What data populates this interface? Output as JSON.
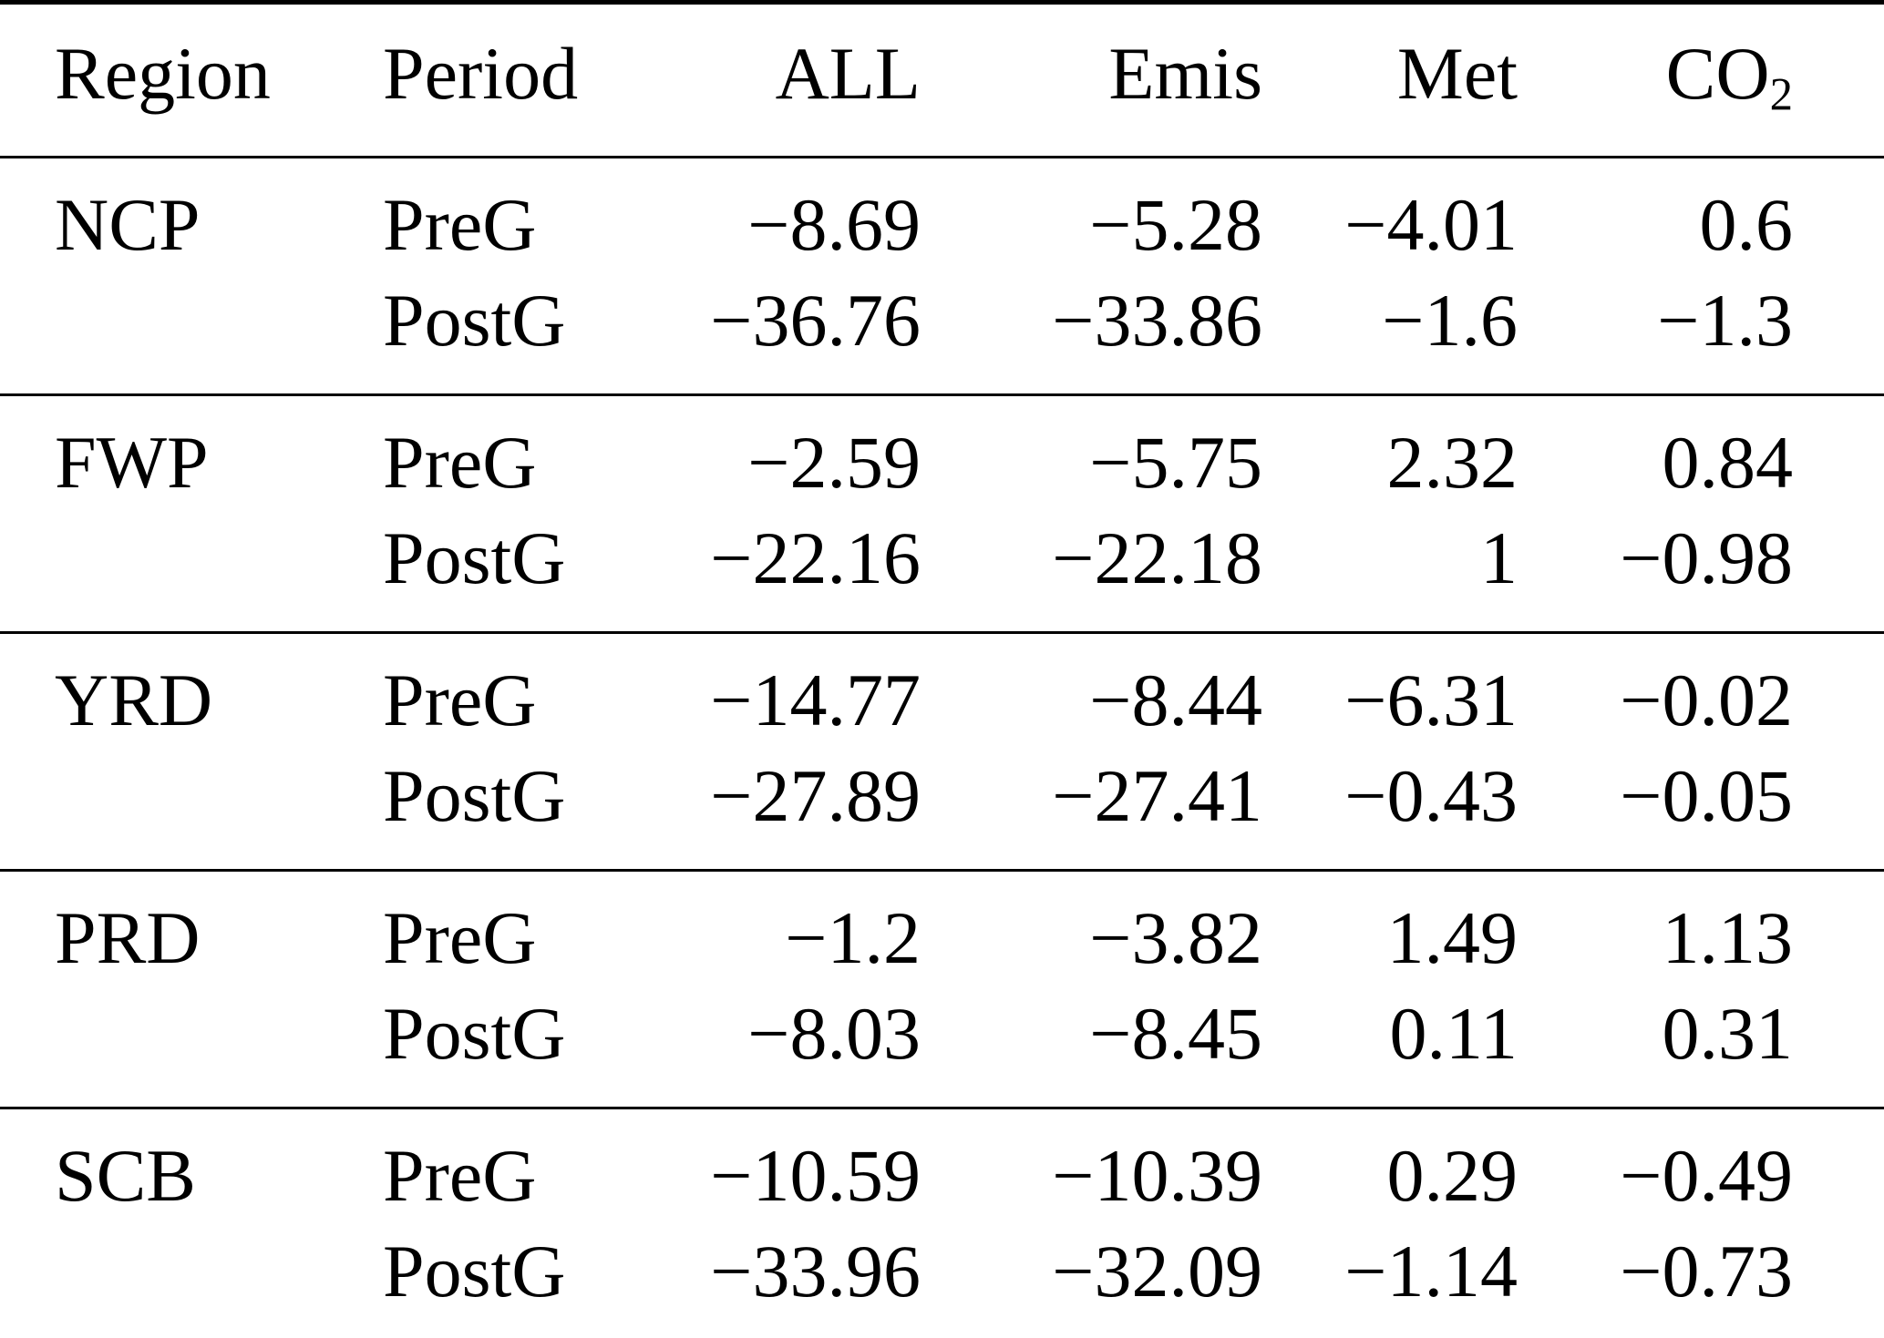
{
  "chart_data": {
    "type": "table",
    "headers": [
      {
        "label": "Region"
      },
      {
        "label": "Period"
      },
      {
        "label": "ALL"
      },
      {
        "label": "Emis"
      },
      {
        "label": "Met"
      },
      {
        "label": "CO",
        "sub": "2"
      }
    ],
    "groups": [
      {
        "region": "NCP",
        "rows": [
          {
            "period": "PreG",
            "values": [
              "−8.69",
              "−5.28",
              "−4.01",
              "0.6"
            ]
          },
          {
            "period": "PostG",
            "values": [
              "−36.76",
              "−33.86",
              "−1.6",
              "−1.3"
            ]
          }
        ]
      },
      {
        "region": "FWP",
        "rows": [
          {
            "period": "PreG",
            "values": [
              "−2.59",
              "−5.75",
              "2.32",
              "0.84"
            ]
          },
          {
            "period": "PostG",
            "values": [
              "−22.16",
              "−22.18",
              "1",
              "−0.98"
            ]
          }
        ]
      },
      {
        "region": "YRD",
        "rows": [
          {
            "period": "PreG",
            "values": [
              "−14.77",
              "−8.44",
              "−6.31",
              "−0.02"
            ]
          },
          {
            "period": "PostG",
            "values": [
              "−27.89",
              "−27.41",
              "−0.43",
              "−0.05"
            ]
          }
        ]
      },
      {
        "region": "PRD",
        "rows": [
          {
            "period": "PreG",
            "values": [
              "−1.2",
              "−3.82",
              "1.49",
              "1.13"
            ]
          },
          {
            "period": "PostG",
            "values": [
              "−8.03",
              "−8.45",
              "0.11",
              "0.31"
            ]
          }
        ]
      },
      {
        "region": "SCB",
        "rows": [
          {
            "period": "PreG",
            "values": [
              "−10.59",
              "−10.39",
              "0.29",
              "−0.49"
            ]
          },
          {
            "period": "PostG",
            "values": [
              "−33.96",
              "−32.09",
              "−1.14",
              "−0.73"
            ]
          }
        ]
      }
    ]
  }
}
